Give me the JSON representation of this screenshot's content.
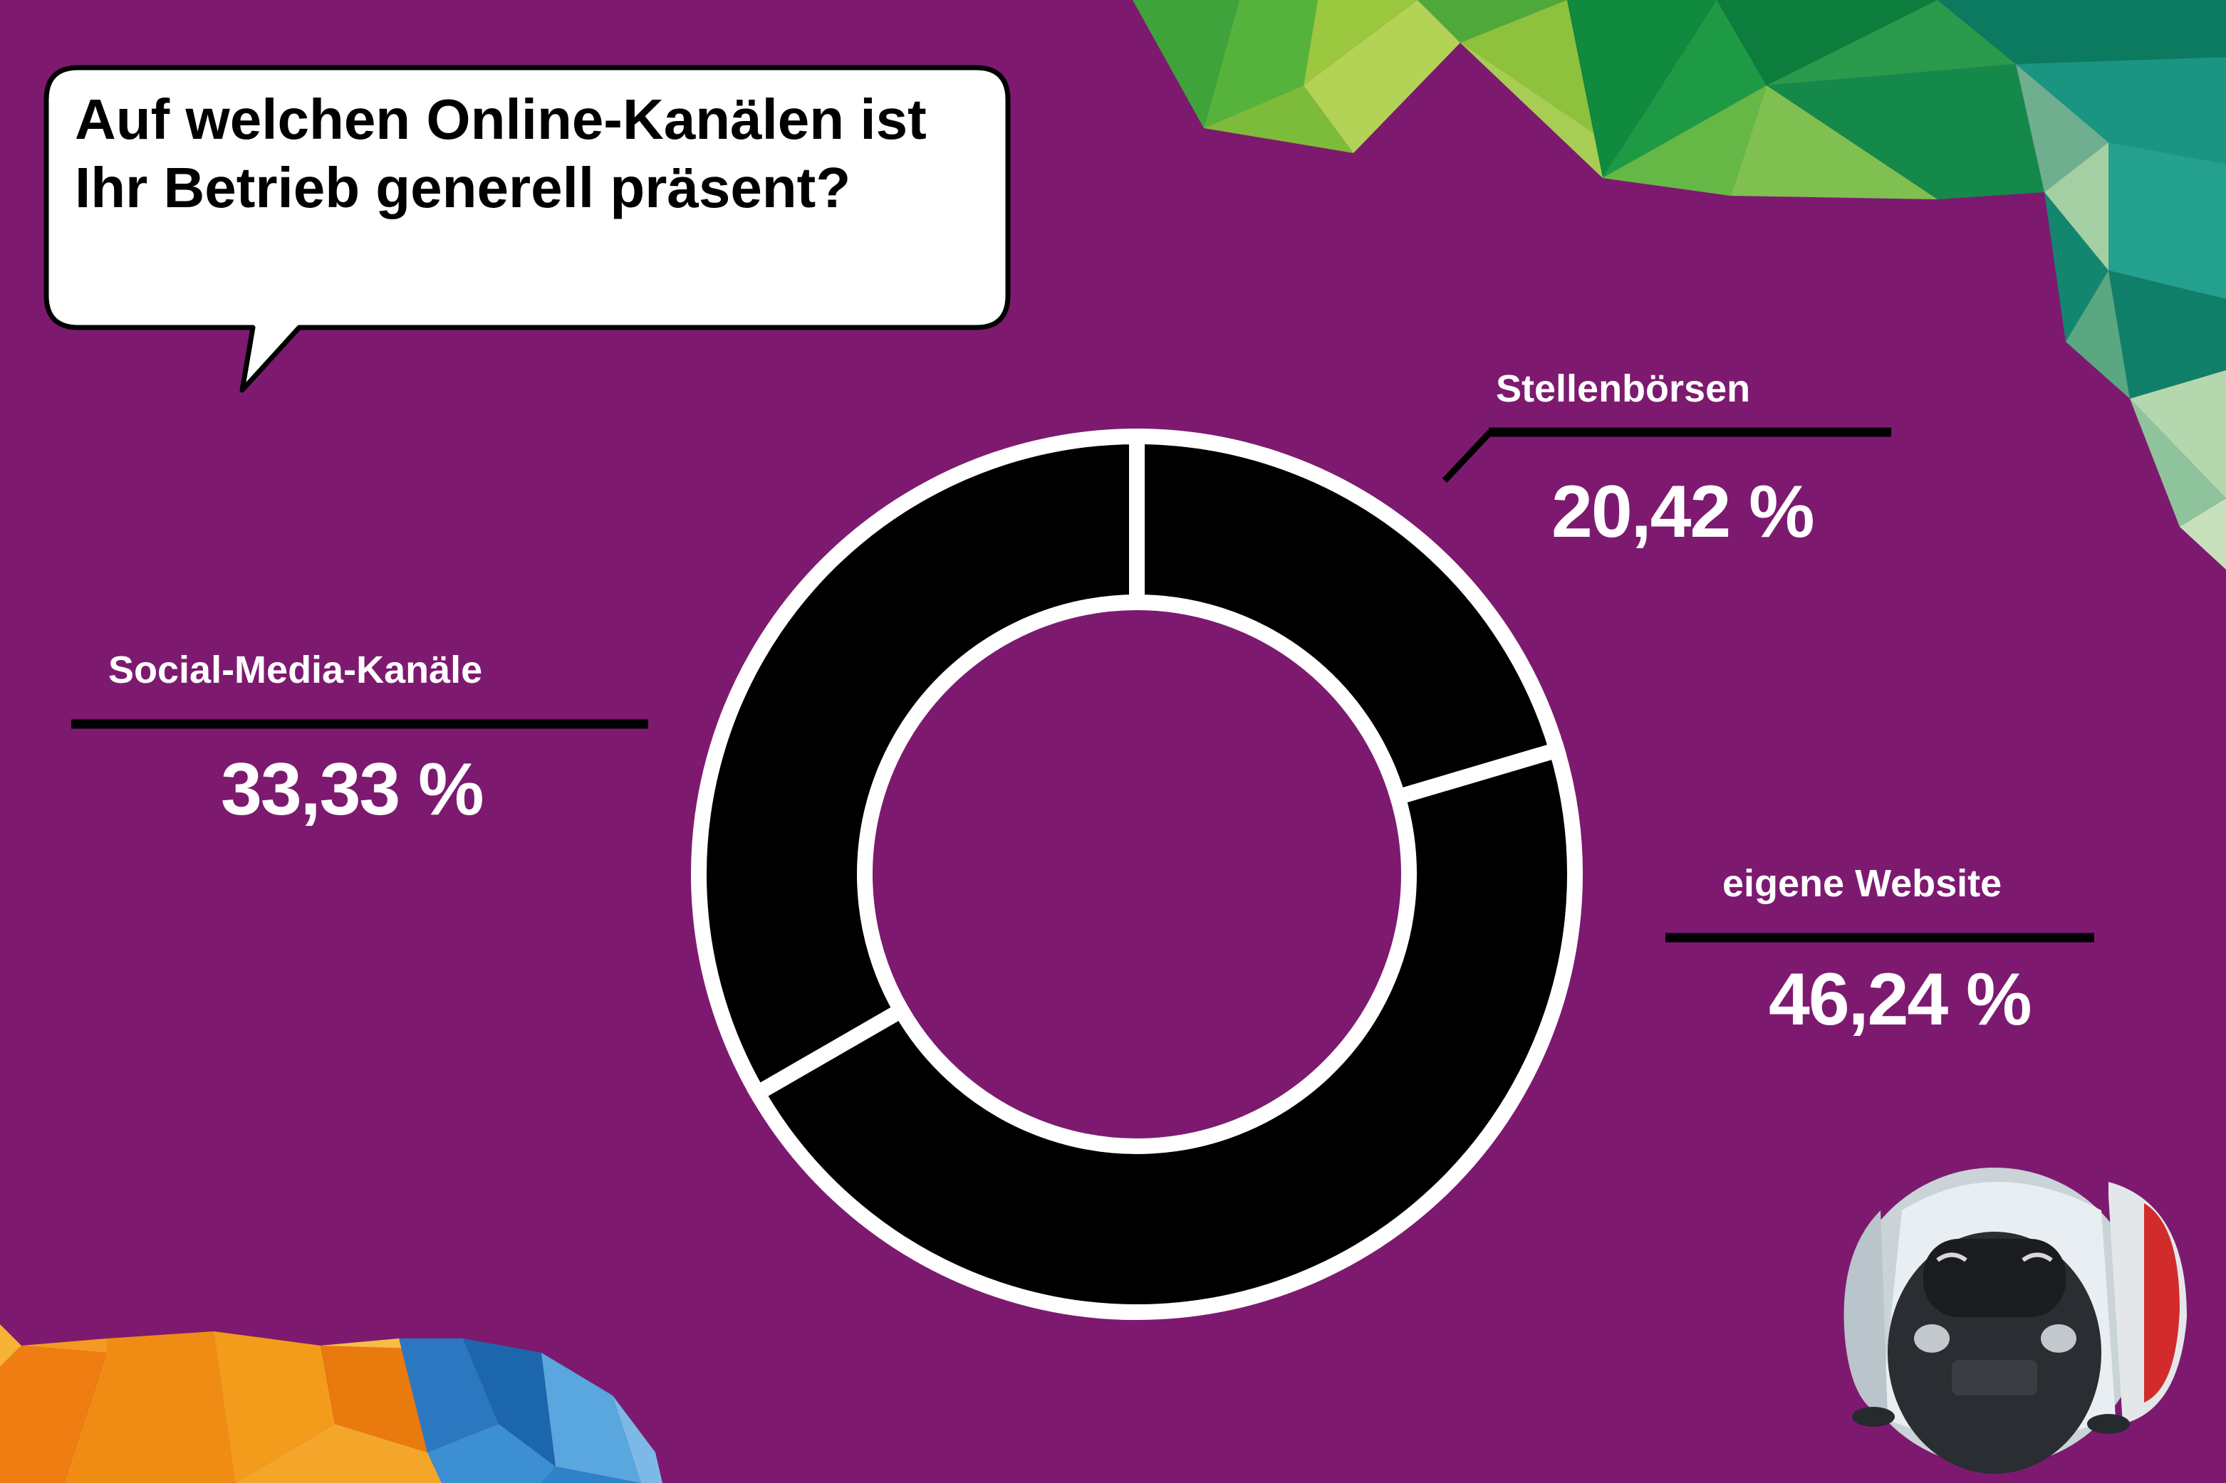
{
  "title": "Auf welchen Online-Kanälen ist Ihr Betrieb generell präsent?",
  "colors": {
    "background": "#7d1a70",
    "segment_fill": "#000000",
    "segment_stroke": "#ffffff",
    "bubble_fill": "#ffffff",
    "text": "#ffffff"
  },
  "chart_data": {
    "type": "pie",
    "style": "donut",
    "title": "Auf welchen Online-Kanälen ist Ihr Betrieb generell präsent?",
    "categories": [
      "Stellenbörsen",
      "eigene Website",
      "Social-Media-Kanäle"
    ],
    "values": [
      20.42,
      46.24,
      33.33
    ],
    "value_labels": [
      "20,42 %",
      "46,24 %",
      "33,33 %"
    ],
    "unit": "%"
  }
}
